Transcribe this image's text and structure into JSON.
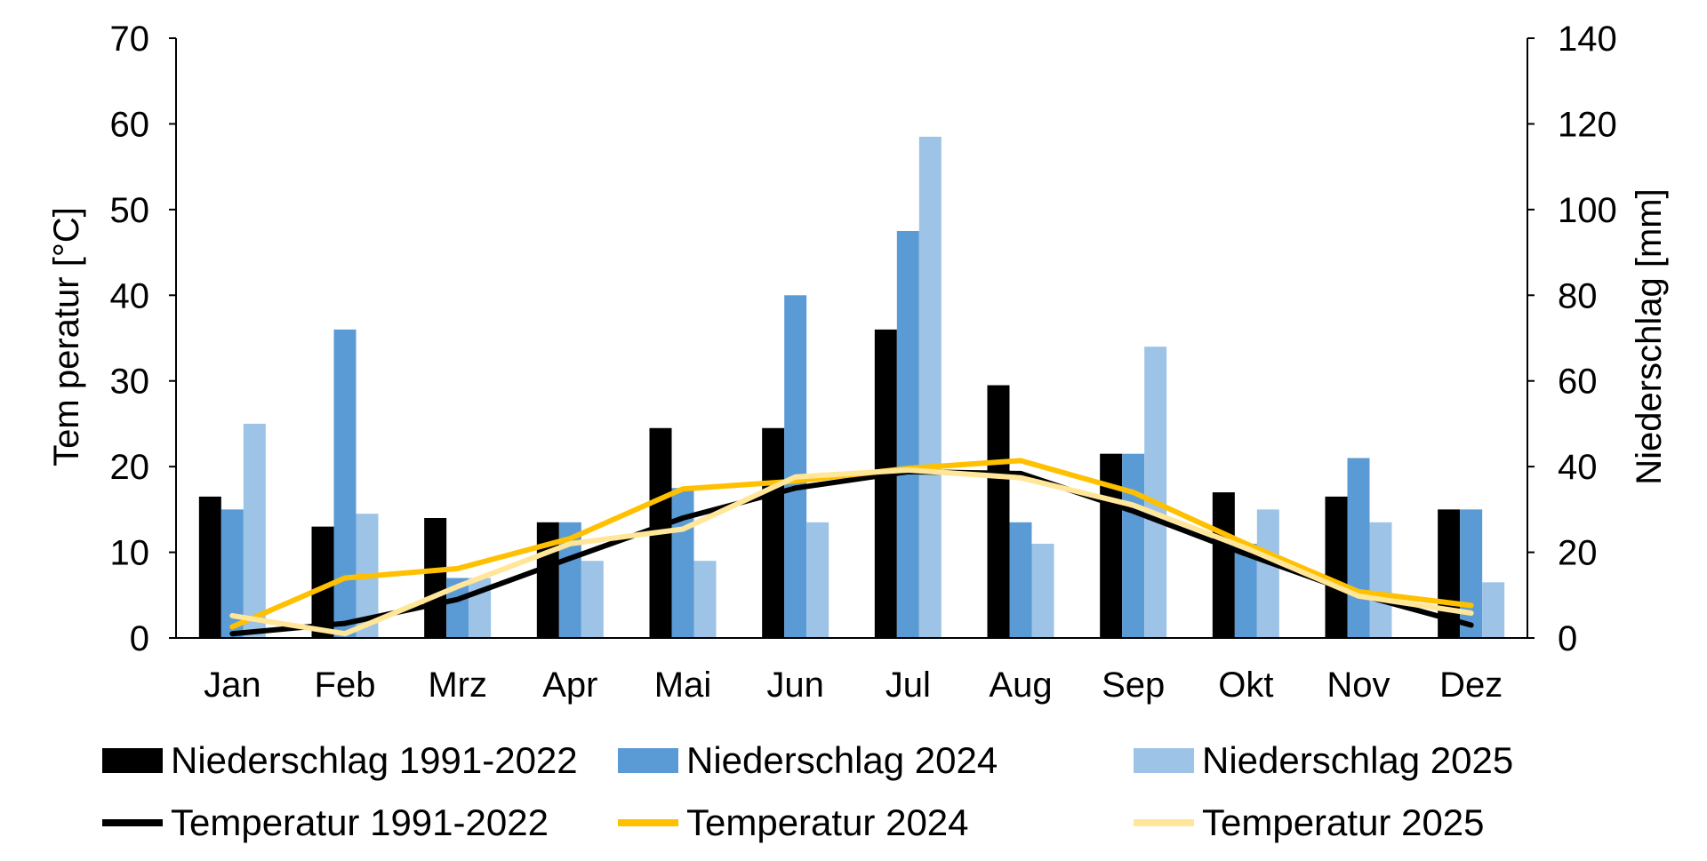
{
  "chart_data": {
    "type": "bar",
    "categories": [
      "Jan",
      "Feb",
      "Mrz",
      "Apr",
      "Mai",
      "Jun",
      "Jul",
      "Aug",
      "Sep",
      "Okt",
      "Nov",
      "Dez"
    ],
    "left_axis": {
      "label": "Tem peratur [°C]",
      "range": [
        0,
        70
      ],
      "ticks": [
        "0",
        "10",
        "20",
        "30",
        "40",
        "50",
        "60",
        "70"
      ]
    },
    "right_axis": {
      "label": "Niederschlag [mm]",
      "range": [
        0,
        140
      ],
      "ticks": [
        "0",
        "20",
        "40",
        "60",
        "80",
        "100",
        "120",
        "140"
      ]
    },
    "grid": false,
    "legend_position": "bottom",
    "bar_series": [
      {
        "name": "Niederschlag 1991-2022",
        "axis": "right",
        "color": "#000000",
        "values": [
          33,
          26,
          28,
          27,
          49,
          49,
          72,
          59,
          43,
          34,
          33,
          30
        ]
      },
      {
        "name": "Niederschlag 2024",
        "axis": "right",
        "color": "#5b9bd5",
        "values": [
          30,
          72,
          14,
          27,
          35,
          80,
          95,
          27,
          43,
          22,
          42,
          30
        ]
      },
      {
        "name": "Niederschlag 2025",
        "axis": "right",
        "color": "#9dc3e6",
        "values": [
          50,
          29,
          14,
          18,
          18,
          27,
          117,
          22,
          68,
          30,
          27,
          13
        ]
      }
    ],
    "line_series": [
      {
        "name": "Temperatur 1991-2022",
        "axis": "left",
        "color": "#000000",
        "values": [
          0.5,
          1.7,
          4.5,
          9.3,
          14.0,
          17.5,
          19.4,
          19.2,
          14.8,
          9.8,
          5.1,
          1.5
        ]
      },
      {
        "name": "Temperatur 2024",
        "axis": "left",
        "color": "#ffc000",
        "values": [
          1.3,
          7.0,
          8.1,
          11.6,
          17.4,
          18.3,
          19.8,
          20.7,
          17.0,
          11.0,
          5.4,
          3.8
        ]
      },
      {
        "name": "Temperatur 2025",
        "axis": "left",
        "color": "#ffe699",
        "values": [
          2.6,
          0.5,
          6.0,
          11.0,
          12.7,
          18.8,
          19.6,
          18.7,
          15.5,
          10.5,
          4.9,
          2.9
        ]
      }
    ]
  }
}
